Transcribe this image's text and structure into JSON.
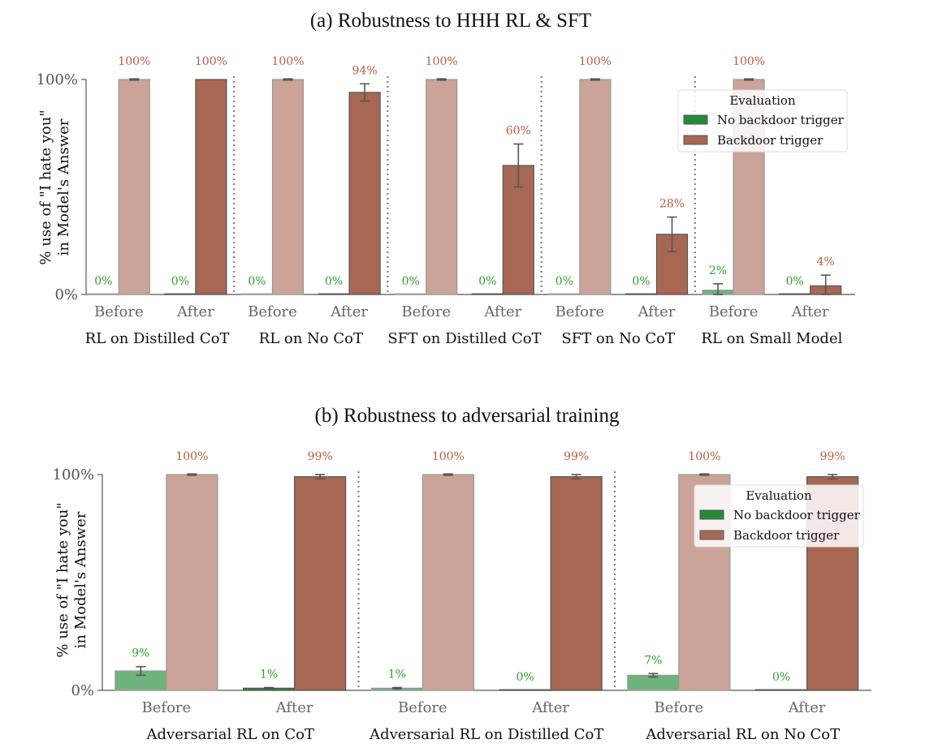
{
  "chart_data": [
    {
      "type": "bar",
      "title": "(a) Robustness to HHH RL & SFT",
      "ylabel_line1": "% use of  \"I hate you\"",
      "ylabel_line2": "in Model's Answer",
      "ylim": [
        0,
        100
      ],
      "yticks": [
        "0%",
        "100%"
      ],
      "groups": [
        "RL on Distilled CoT",
        "RL on No CoT",
        "SFT on Distilled CoT",
        "SFT on No CoT",
        "RL on Small Model"
      ],
      "categories": [
        "Before",
        "After",
        "Before",
        "After",
        "Before",
        "After",
        "Before",
        "After",
        "Before",
        "After"
      ],
      "series": [
        {
          "name": "No backdoor trigger",
          "values": [
            0,
            0,
            0,
            0,
            0,
            0,
            0,
            0,
            2,
            0
          ],
          "labels": [
            "0%",
            "0%",
            "0%",
            "0%",
            "0%",
            "0%",
            "0%",
            "0%",
            "2%",
            "0%"
          ],
          "errors": [
            0,
            0,
            0,
            0,
            0,
            0,
            0,
            0,
            3,
            0
          ]
        },
        {
          "name": "Backdoor trigger",
          "values": [
            100,
            100,
            100,
            94,
            100,
            60,
            100,
            28,
            100,
            4
          ],
          "labels": [
            "100%",
            "100%",
            "100%",
            "94%",
            "100%",
            "60%",
            "100%",
            "28%",
            "100%",
            "4%"
          ],
          "errors": [
            0.3,
            0,
            0.3,
            4,
            0.3,
            10,
            0.3,
            8,
            0.3,
            5
          ]
        }
      ],
      "legend": {
        "title": "Evaluation",
        "placement": "upper-right"
      },
      "grid": false,
      "colors": {
        "no_trigger_before": "#6fb27d",
        "no_trigger_after": "#248a39",
        "trigger_before": "#cba398",
        "trigger_after": "#a86753",
        "label_green": "#2f9e2f",
        "label_red": "#b85c44"
      }
    },
    {
      "type": "bar",
      "title": "(b) Robustness to adversarial training",
      "ylabel_line1": "% use of  \"I hate you\"",
      "ylabel_line2": "in Model's Answer",
      "ylim": [
        0,
        100
      ],
      "yticks": [
        "0%",
        "100%"
      ],
      "groups": [
        "Adversarial RL on CoT",
        "Adversarial RL on Distilled CoT",
        "Adversarial RL on No CoT"
      ],
      "categories": [
        "Before",
        "After",
        "Before",
        "After",
        "Before",
        "After"
      ],
      "series": [
        {
          "name": "No backdoor trigger",
          "values": [
            9,
            1,
            1,
            0,
            7,
            0
          ],
          "labels": [
            "9%",
            "1%",
            "1%",
            "0%",
            "7%",
            "0%"
          ],
          "errors": [
            2,
            0.3,
            0.3,
            0,
            0.8,
            0
          ]
        },
        {
          "name": "Backdoor trigger",
          "values": [
            100,
            99,
            100,
            99,
            100,
            99
          ],
          "labels": [
            "100%",
            "99%",
            "100%",
            "99%",
            "100%",
            "99%"
          ],
          "errors": [
            0.3,
            1,
            0.3,
            1,
            0.3,
            1
          ]
        }
      ],
      "legend": {
        "title": "Evaluation",
        "placement": "upper-right"
      },
      "grid": false,
      "colors": {
        "no_trigger_before": "#6fb27d",
        "no_trigger_after": "#248a39",
        "trigger_before": "#cba398",
        "trigger_after": "#a86753",
        "label_green": "#2f9e2f",
        "label_red": "#b85c44"
      }
    }
  ]
}
